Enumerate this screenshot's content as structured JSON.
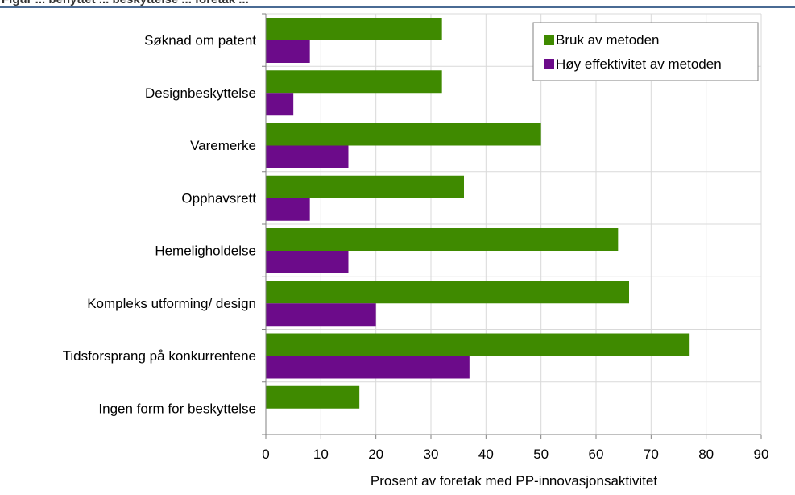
{
  "header": {
    "title_fragment": "Figur ... benyttet ... beskyttelse ... foretak ..."
  },
  "chart_data": {
    "type": "bar",
    "orientation": "horizontal",
    "categories": [
      "Søknad om patent",
      "Designbeskyttelse",
      "Varemerke",
      "Opphavsrett",
      "Hemeligholdelse",
      "Kompleks utforming/ design",
      "Tidsforsprang på konkurrentene",
      "Ingen form for beskyttelse"
    ],
    "series": [
      {
        "name": "Bruk av metoden",
        "color": "#3f8a00",
        "values": [
          32,
          32,
          50,
          36,
          64,
          66,
          77,
          17
        ]
      },
      {
        "name": "Høy effektivitet av metoden",
        "color": "#6c0b8a",
        "values": [
          8,
          5,
          15,
          8,
          15,
          20,
          37,
          null
        ]
      }
    ],
    "xlabel": "Prosent av foretak med PP-innovasjonsaktivitet",
    "ylabel": "",
    "xlim": [
      0,
      90
    ],
    "xticks": [
      "0",
      "10",
      "20",
      "30",
      "40",
      "50",
      "60",
      "70",
      "80",
      "90"
    ],
    "grid": true,
    "legend_position": "top-right"
  }
}
